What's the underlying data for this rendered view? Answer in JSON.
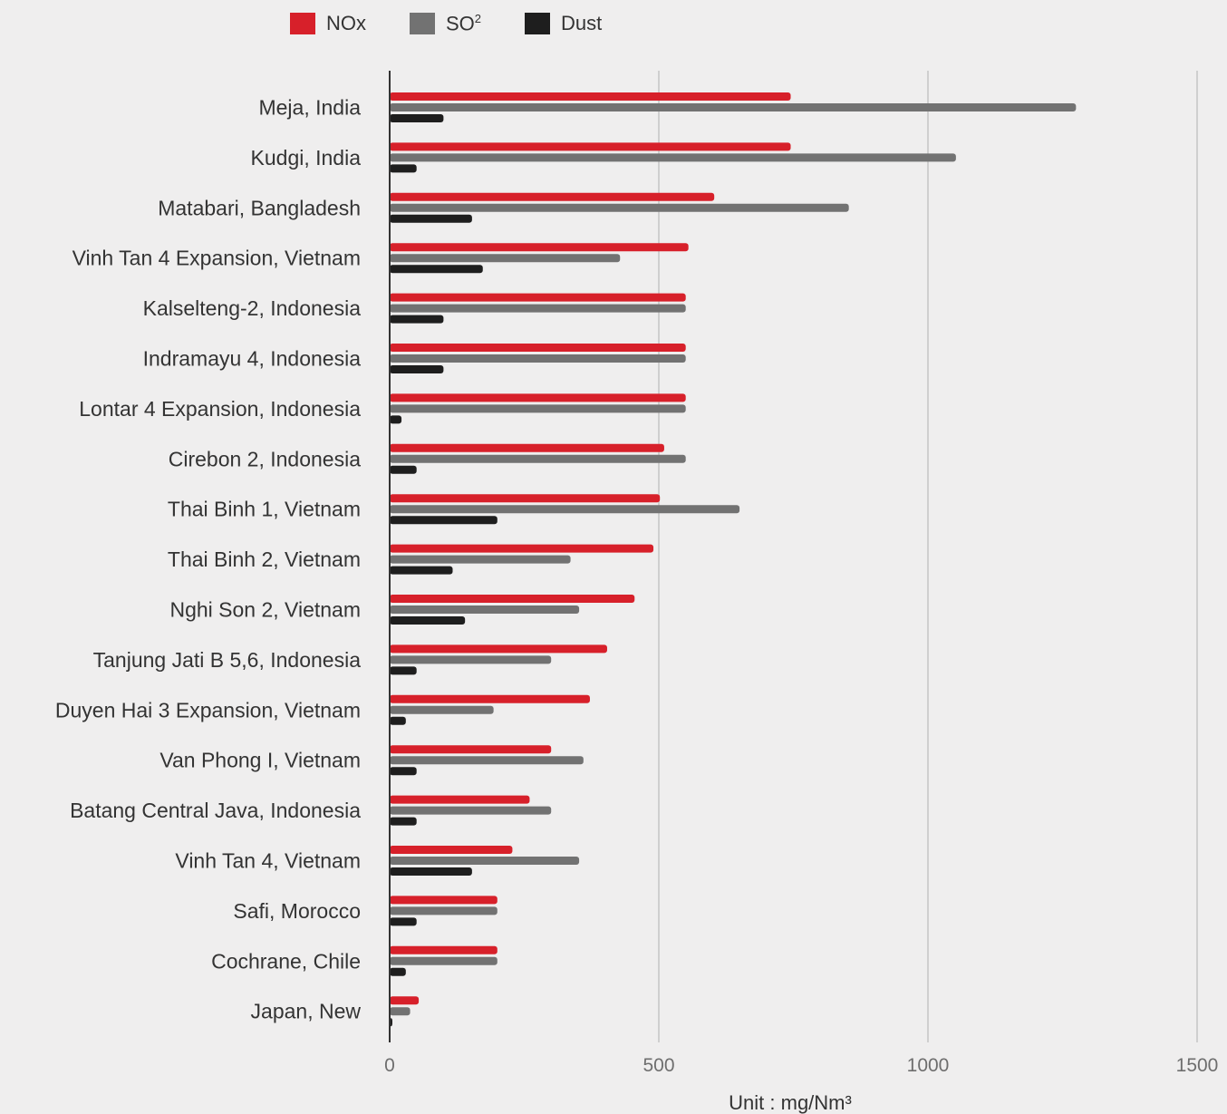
{
  "chart_data": {
    "type": "bar",
    "orientation": "horizontal",
    "title": "",
    "xlabel": "Unit : mg/Nm³",
    "ylabel": "",
    "xlim": [
      0,
      1500
    ],
    "xticks": [
      0,
      500,
      1000,
      1500
    ],
    "grid": true,
    "legend_position": "top",
    "categories": [
      "Meja, India",
      "Kudgi, India",
      "Matabari, Bangladesh",
      "Vinh Tan 4 Expansion, Vietnam",
      "Kalselteng-2, Indonesia",
      "Indramayu 4, Indonesia",
      "Lontar 4 Expansion, Indonesia",
      "Cirebon 2, Indonesia",
      "Thai Binh 1, Vietnam",
      "Thai Binh 2, Vietnam",
      "Nghi Son 2, Vietnam",
      "Tanjung Jati B 5,6, Indonesia",
      "Duyen Hai 3 Expansion, Vietnam",
      "Van Phong I, Vietnam",
      "Batang Central Java, Indonesia",
      "Vinh Tan 4, Vietnam",
      "Safi, Morocco",
      "Cochrane, Chile",
      "Japan, New"
    ],
    "series": [
      {
        "name": "NOx",
        "color": "#d7202a",
        "values": [
          745,
          745,
          603,
          555,
          550,
          550,
          550,
          510,
          502,
          490,
          455,
          404,
          372,
          300,
          260,
          228,
          200,
          200,
          54
        ]
      },
      {
        "name": "SO",
        "name_sup": "2",
        "color": "#727272",
        "values": [
          1275,
          1052,
          853,
          428,
          550,
          550,
          550,
          550,
          650,
          336,
          352,
          300,
          193,
          360,
          300,
          352,
          200,
          200,
          38
        ]
      },
      {
        "name": "Dust",
        "color": "#1e1e1e",
        "values": [
          100,
          50,
          153,
          173,
          100,
          100,
          22,
          50,
          200,
          117,
          140,
          50,
          30,
          50,
          50,
          153,
          50,
          30,
          5
        ]
      }
    ]
  }
}
